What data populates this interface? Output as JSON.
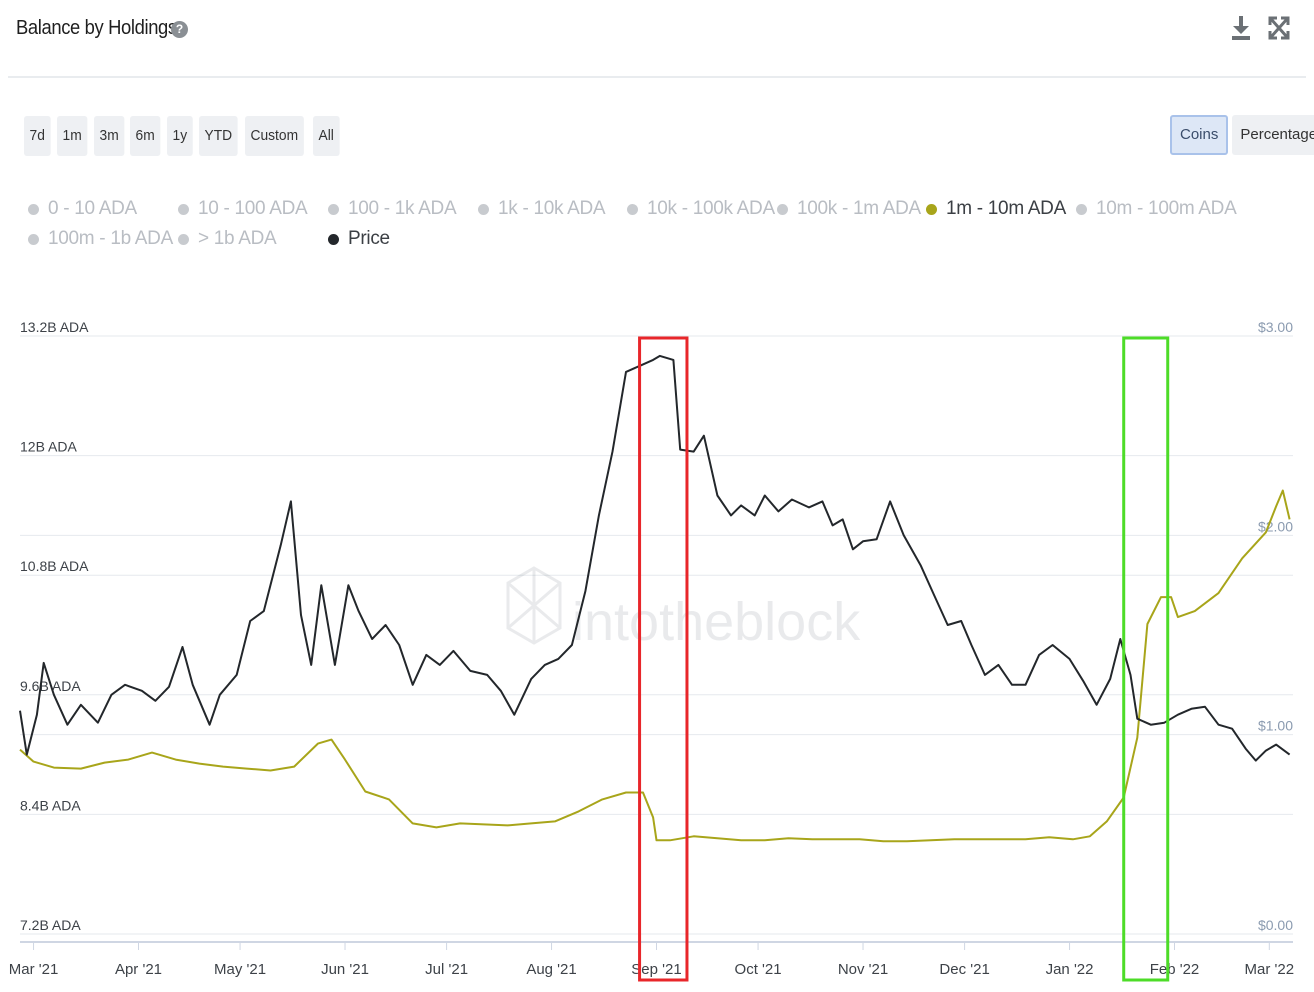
{
  "header": {
    "title": "Balance by Holdings",
    "help_icon": "question-circle-icon",
    "download_icon": "download-icon",
    "expand_icon": "expand-icon"
  },
  "range_buttons": [
    "7d",
    "1m",
    "3m",
    "6m",
    "1y",
    "YTD",
    "Custom",
    "All"
  ],
  "mode_buttons": {
    "coins": "Coins",
    "percentage": "Percentage",
    "active": "Coins"
  },
  "legend": [
    {
      "label": "0 - 10 ADA",
      "active": false
    },
    {
      "label": "10 - 100 ADA",
      "active": false
    },
    {
      "label": "100 - 1k ADA",
      "active": false
    },
    {
      "label": "1k - 10k ADA",
      "active": false
    },
    {
      "label": "10k - 100k ADA",
      "active": false
    },
    {
      "label": "100k - 1m ADA",
      "active": false
    },
    {
      "label": "1m - 10m ADA",
      "active": true,
      "color": "#a8a51a"
    },
    {
      "label": "10m - 100m ADA",
      "active": false
    },
    {
      "label": "100m - 1b ADA",
      "active": false
    },
    {
      "label": "> 1b ADA",
      "active": false
    },
    {
      "label": "Price",
      "active": true,
      "color": "#23272b"
    }
  ],
  "watermark": "intotheblock",
  "colors": {
    "balance": "#a8a51a",
    "price": "#23272b",
    "red_box": "#e8262a",
    "green_box": "#4ddc28",
    "grid": "#e6e9ee"
  },
  "chart_data": {
    "type": "line",
    "x_tick_labels": [
      "Mar '21",
      "Apr '21",
      "May '21",
      "Jun '21",
      "Jul '21",
      "Aug '21",
      "Sep '21",
      "Oct '21",
      "Nov '21",
      "Dec '21",
      "Jan '22",
      "Feb '22",
      "Mar '22"
    ],
    "x_tick_dates": [
      "2021-03-01",
      "2021-04-01",
      "2021-05-01",
      "2021-06-01",
      "2021-07-01",
      "2021-08-01",
      "2021-09-01",
      "2021-10-01",
      "2021-11-01",
      "2021-12-01",
      "2022-01-01",
      "2022-02-01",
      "2022-03-01"
    ],
    "x_range": [
      "2021-02-25",
      "2022-03-08"
    ],
    "y_left": {
      "label_unit": "ADA",
      "ticks": [
        "7.2B ADA",
        "8.4B ADA",
        "9.6B ADA",
        "10.8B ADA",
        "12B ADA",
        "13.2B ADA"
      ],
      "tick_values": [
        7.2,
        8.4,
        9.6,
        10.8,
        12.0,
        13.2
      ],
      "range": [
        7.2,
        13.2
      ]
    },
    "y_right": {
      "ticks": [
        "$0.00",
        "$1.00",
        "$2.00",
        "$3.00"
      ],
      "tick_values": [
        0,
        1,
        2,
        3
      ],
      "range": [
        0,
        3
      ]
    },
    "series": [
      {
        "name": "1m - 10m ADA",
        "axis": "left",
        "unit": "B ADA",
        "points": [
          [
            "2021-02-25",
            9.05
          ],
          [
            "2021-03-01",
            8.93
          ],
          [
            "2021-03-07",
            8.87
          ],
          [
            "2021-03-15",
            8.86
          ],
          [
            "2021-03-22",
            8.92
          ],
          [
            "2021-03-29",
            8.95
          ],
          [
            "2021-04-05",
            9.02
          ],
          [
            "2021-04-12",
            8.95
          ],
          [
            "2021-04-19",
            8.91
          ],
          [
            "2021-04-26",
            8.88
          ],
          [
            "2021-05-03",
            8.86
          ],
          [
            "2021-05-10",
            8.84
          ],
          [
            "2021-05-17",
            8.88
          ],
          [
            "2021-05-24",
            9.11
          ],
          [
            "2021-05-28",
            9.15
          ],
          [
            "2021-06-01",
            8.95
          ],
          [
            "2021-06-07",
            8.63
          ],
          [
            "2021-06-14",
            8.55
          ],
          [
            "2021-06-21",
            8.31
          ],
          [
            "2021-06-28",
            8.27
          ],
          [
            "2021-07-05",
            8.31
          ],
          [
            "2021-07-12",
            8.3
          ],
          [
            "2021-07-19",
            8.29
          ],
          [
            "2021-07-26",
            8.31
          ],
          [
            "2021-08-02",
            8.33
          ],
          [
            "2021-08-09",
            8.43
          ],
          [
            "2021-08-16",
            8.55
          ],
          [
            "2021-08-23",
            8.62
          ],
          [
            "2021-08-28",
            8.62
          ],
          [
            "2021-08-31",
            8.37
          ],
          [
            "2021-09-01",
            8.14
          ],
          [
            "2021-09-05",
            8.14
          ],
          [
            "2021-09-12",
            8.18
          ],
          [
            "2021-09-19",
            8.16
          ],
          [
            "2021-09-26",
            8.14
          ],
          [
            "2021-10-03",
            8.14
          ],
          [
            "2021-10-10",
            8.16
          ],
          [
            "2021-10-17",
            8.15
          ],
          [
            "2021-10-24",
            8.15
          ],
          [
            "2021-10-31",
            8.15
          ],
          [
            "2021-11-07",
            8.13
          ],
          [
            "2021-11-14",
            8.13
          ],
          [
            "2021-11-21",
            8.14
          ],
          [
            "2021-11-28",
            8.15
          ],
          [
            "2021-12-05",
            8.15
          ],
          [
            "2021-12-12",
            8.15
          ],
          [
            "2021-12-19",
            8.15
          ],
          [
            "2021-12-26",
            8.17
          ],
          [
            "2022-01-02",
            8.15
          ],
          [
            "2022-01-07",
            8.18
          ],
          [
            "2022-01-12",
            8.33
          ],
          [
            "2022-01-17",
            8.57
          ],
          [
            "2022-01-21",
            9.17
          ],
          [
            "2022-01-24",
            10.31
          ],
          [
            "2022-01-28",
            10.58
          ],
          [
            "2022-01-31",
            10.58
          ],
          [
            "2022-02-02",
            10.38
          ],
          [
            "2022-02-07",
            10.44
          ],
          [
            "2022-02-14",
            10.62
          ],
          [
            "2022-02-21",
            10.97
          ],
          [
            "2022-02-28",
            11.23
          ],
          [
            "2022-03-03",
            11.49
          ],
          [
            "2022-03-05",
            11.65
          ],
          [
            "2022-03-07",
            11.36
          ]
        ]
      },
      {
        "name": "Price",
        "axis": "right",
        "unit": "$",
        "points": [
          [
            "2021-02-25",
            1.12
          ],
          [
            "2021-02-27",
            0.9
          ],
          [
            "2021-03-02",
            1.1
          ],
          [
            "2021-03-04",
            1.36
          ],
          [
            "2021-03-07",
            1.2
          ],
          [
            "2021-03-11",
            1.05
          ],
          [
            "2021-03-15",
            1.15
          ],
          [
            "2021-03-20",
            1.06
          ],
          [
            "2021-03-24",
            1.2
          ],
          [
            "2021-03-28",
            1.25
          ],
          [
            "2021-04-02",
            1.22
          ],
          [
            "2021-04-06",
            1.17
          ],
          [
            "2021-04-10",
            1.24
          ],
          [
            "2021-04-14",
            1.44
          ],
          [
            "2021-04-17",
            1.25
          ],
          [
            "2021-04-22",
            1.05
          ],
          [
            "2021-04-25",
            1.2
          ],
          [
            "2021-04-30",
            1.3
          ],
          [
            "2021-05-04",
            1.57
          ],
          [
            "2021-05-08",
            1.62
          ],
          [
            "2021-05-13",
            1.95
          ],
          [
            "2021-05-16",
            2.17
          ],
          [
            "2021-05-19",
            1.6
          ],
          [
            "2021-05-22",
            1.35
          ],
          [
            "2021-05-25",
            1.75
          ],
          [
            "2021-05-29",
            1.35
          ],
          [
            "2021-06-02",
            1.75
          ],
          [
            "2021-06-05",
            1.62
          ],
          [
            "2021-06-09",
            1.48
          ],
          [
            "2021-06-13",
            1.55
          ],
          [
            "2021-06-17",
            1.45
          ],
          [
            "2021-06-21",
            1.25
          ],
          [
            "2021-06-25",
            1.4
          ],
          [
            "2021-06-29",
            1.35
          ],
          [
            "2021-07-03",
            1.42
          ],
          [
            "2021-07-08",
            1.32
          ],
          [
            "2021-07-13",
            1.3
          ],
          [
            "2021-07-17",
            1.22
          ],
          [
            "2021-07-21",
            1.1
          ],
          [
            "2021-07-26",
            1.28
          ],
          [
            "2021-07-30",
            1.35
          ],
          [
            "2021-08-03",
            1.38
          ],
          [
            "2021-08-07",
            1.45
          ],
          [
            "2021-08-11",
            1.72
          ],
          [
            "2021-08-15",
            2.1
          ],
          [
            "2021-08-19",
            2.42
          ],
          [
            "2021-08-23",
            2.82
          ],
          [
            "2021-08-27",
            2.85
          ],
          [
            "2021-08-31",
            2.88
          ],
          [
            "2021-09-02",
            2.9
          ],
          [
            "2021-09-06",
            2.88
          ],
          [
            "2021-09-08",
            2.43
          ],
          [
            "2021-09-12",
            2.42
          ],
          [
            "2021-09-15",
            2.5
          ],
          [
            "2021-09-19",
            2.2
          ],
          [
            "2021-09-23",
            2.1
          ],
          [
            "2021-09-26",
            2.15
          ],
          [
            "2021-09-30",
            2.1
          ],
          [
            "2021-10-03",
            2.2
          ],
          [
            "2021-10-07",
            2.12
          ],
          [
            "2021-10-11",
            2.18
          ],
          [
            "2021-10-16",
            2.14
          ],
          [
            "2021-10-20",
            2.17
          ],
          [
            "2021-10-23",
            2.05
          ],
          [
            "2021-10-26",
            2.08
          ],
          [
            "2021-10-29",
            1.93
          ],
          [
            "2021-11-01",
            1.97
          ],
          [
            "2021-11-05",
            1.98
          ],
          [
            "2021-11-09",
            2.17
          ],
          [
            "2021-11-13",
            2.0
          ],
          [
            "2021-11-18",
            1.85
          ],
          [
            "2021-11-22",
            1.7
          ],
          [
            "2021-11-26",
            1.55
          ],
          [
            "2021-11-30",
            1.57
          ],
          [
            "2021-12-03",
            1.45
          ],
          [
            "2021-12-07",
            1.3
          ],
          [
            "2021-12-11",
            1.35
          ],
          [
            "2021-12-15",
            1.25
          ],
          [
            "2021-12-19",
            1.25
          ],
          [
            "2021-12-23",
            1.4
          ],
          [
            "2021-12-27",
            1.45
          ],
          [
            "2022-01-01",
            1.38
          ],
          [
            "2022-01-05",
            1.27
          ],
          [
            "2022-01-09",
            1.15
          ],
          [
            "2022-01-13",
            1.28
          ],
          [
            "2022-01-16",
            1.48
          ],
          [
            "2022-01-19",
            1.3
          ],
          [
            "2022-01-21",
            1.08
          ],
          [
            "2022-01-25",
            1.05
          ],
          [
            "2022-01-29",
            1.06
          ],
          [
            "2022-02-02",
            1.1
          ],
          [
            "2022-02-06",
            1.13
          ],
          [
            "2022-02-10",
            1.14
          ],
          [
            "2022-02-14",
            1.05
          ],
          [
            "2022-02-18",
            1.03
          ],
          [
            "2022-02-22",
            0.93
          ],
          [
            "2022-02-25",
            0.87
          ],
          [
            "2022-02-28",
            0.92
          ],
          [
            "2022-03-03",
            0.95
          ],
          [
            "2022-03-07",
            0.9
          ]
        ]
      }
    ],
    "highlight_boxes": [
      {
        "color": "red",
        "x_start": "2021-08-27",
        "x_end": "2021-09-10"
      },
      {
        "color": "green",
        "x_start": "2022-01-17",
        "x_end": "2022-01-30"
      }
    ],
    "grid": true,
    "legend_position": "top-left"
  }
}
